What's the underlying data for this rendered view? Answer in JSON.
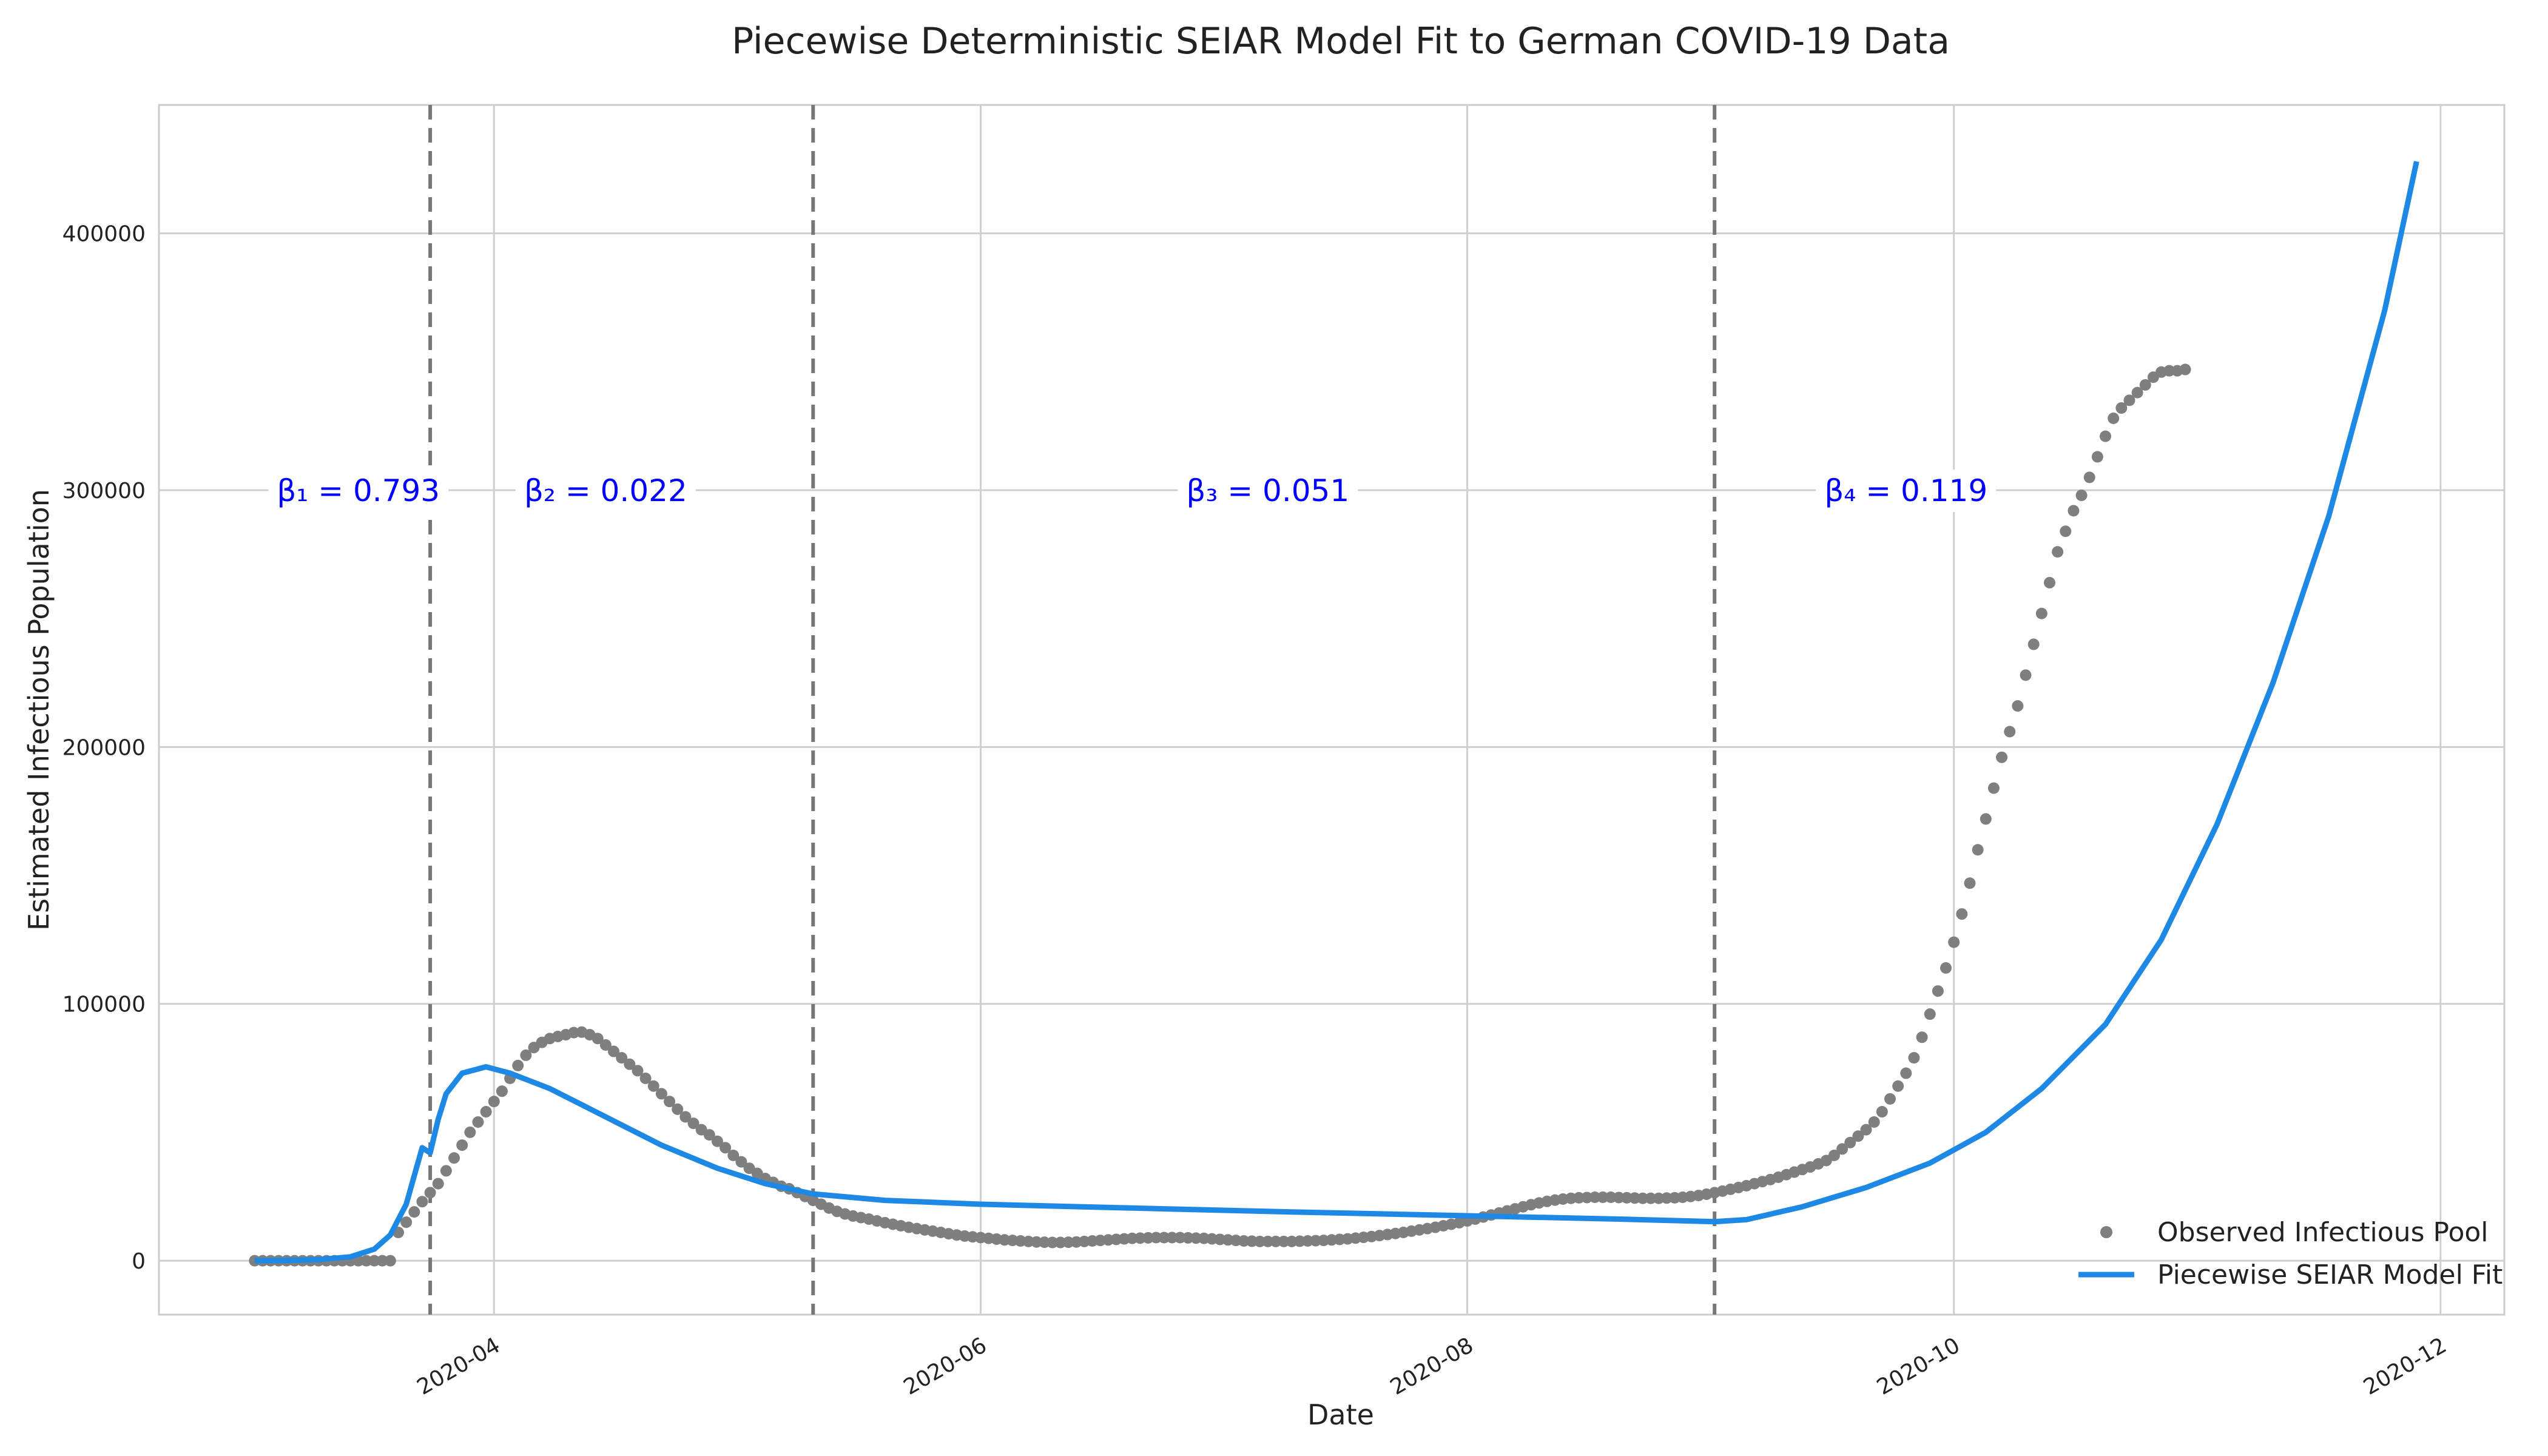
{
  "chart_data": {
    "type": "line",
    "title": "Piecewise Deterministic SEIAR Model Fit to German COVID-19 Data",
    "xlabel": "Date",
    "ylabel": "Estimated Infectious Population",
    "xlim": [
      "2020-02-19",
      "2020-12-09"
    ],
    "ylim": [
      -21000,
      450000
    ],
    "x_ticks": [
      "2020-04",
      "2020-06",
      "2020-08",
      "2020-10",
      "2020-12"
    ],
    "x_tick_dates": [
      "2020-04-01",
      "2020-06-01",
      "2020-08-01",
      "2020-10-01",
      "2020-12-01"
    ],
    "y_ticks": [
      0,
      100000,
      200000,
      300000,
      400000
    ],
    "grid": true,
    "legend_position": "bottom-right",
    "colors": {
      "observed": "#7f7f7f",
      "model": "#1e88e5",
      "changepoint": "#777777",
      "beta_text": "#0000ff"
    },
    "changepoints": [
      "2020-03-24",
      "2020-05-11",
      "2020-09-01"
    ],
    "annotations": [
      {
        "label": "β₁ = 0.793",
        "x": "2020-03-15",
        "y": 300000
      },
      {
        "label": "β₂ = 0.022",
        "x": "2020-04-15",
        "y": 300000
      },
      {
        "label": "β₃ = 0.051",
        "x": "2020-07-07",
        "y": 300000
      },
      {
        "label": "β₄ = 0.119",
        "x": "2020-09-25",
        "y": 300000
      }
    ],
    "observed": {
      "name": "Observed Infectious Pool",
      "start_date": "2020-03-02",
      "values": [
        0,
        0,
        0,
        0,
        0,
        0,
        0,
        0,
        0,
        0,
        0,
        0,
        0,
        0,
        0,
        0,
        0,
        0,
        11000,
        15000,
        19000,
        23000,
        26500,
        30000,
        35000,
        40000,
        45000,
        50000,
        54000,
        58000,
        62000,
        66000,
        71000,
        76000,
        80000,
        83000,
        85000,
        86500,
        87300,
        88000,
        88800,
        89000,
        88000,
        86500,
        84000,
        81500,
        79000,
        76500,
        74000,
        71000,
        68000,
        65000,
        62000,
        59000,
        56000,
        53500,
        51000,
        49000,
        46500,
        44000,
        41000,
        38500,
        36000,
        34000,
        32000,
        30500,
        29000,
        28000,
        26500,
        25000,
        23500,
        22000,
        20500,
        19200,
        18200,
        17400,
        16800,
        16200,
        15500,
        14800,
        14200,
        13600,
        13000,
        12500,
        12000,
        11500,
        11000,
        10500,
        10000,
        9600,
        9300,
        9000,
        8700,
        8400,
        8100,
        7900,
        7700,
        7500,
        7300,
        7200,
        7100,
        7100,
        7200,
        7300,
        7500,
        7700,
        7900,
        8100,
        8300,
        8500,
        8700,
        8800,
        8900,
        9000,
        9000,
        9000,
        9000,
        8900,
        8800,
        8700,
        8500,
        8300,
        8100,
        7900,
        7700,
        7600,
        7500,
        7500,
        7500,
        7500,
        7500,
        7600,
        7700,
        7800,
        7900,
        8100,
        8300,
        8500,
        8800,
        9100,
        9400,
        9800,
        10200,
        10600,
        11000,
        11500,
        12000,
        12500,
        13000,
        13600,
        14200,
        14800,
        15500,
        16200,
        17000,
        17800,
        18600,
        19400,
        20200,
        21000,
        21800,
        22500,
        23100,
        23600,
        24000,
        24300,
        24500,
        24600,
        24700,
        24700,
        24700,
        24600,
        24500,
        24400,
        24300,
        24300,
        24300,
        24400,
        24500,
        24700,
        25000,
        25400,
        25900,
        26500,
        27100,
        27800,
        28500,
        29200,
        30000,
        30800,
        31600,
        32500,
        33500,
        34500,
        35500,
        36500,
        37700,
        39000,
        41000,
        43500,
        46000,
        48500,
        51000,
        54000,
        58000,
        63000,
        68000,
        73000,
        79000,
        87000,
        96000,
        105000,
        114000,
        124000,
        135000,
        147000,
        160000,
        172000,
        184000,
        196000,
        206000,
        216000,
        228000,
        240000,
        252000,
        264000,
        276000,
        284000,
        292000,
        298000,
        305000,
        313000,
        321000,
        328000,
        332000,
        335000,
        338000,
        341000,
        344000,
        346000,
        346500,
        346500,
        347000
      ]
    },
    "model": {
      "name": "Piecewise SEIAR Model Fit",
      "x": [
        "2020-03-02",
        "2020-03-06",
        "2020-03-10",
        "2020-03-14",
        "2020-03-17",
        "2020-03-19",
        "2020-03-21",
        "2020-03-23",
        "2020-03-24",
        "2020-03-25",
        "2020-03-26",
        "2020-03-28",
        "2020-03-31",
        "2020-04-03",
        "2020-04-08",
        "2020-04-15",
        "2020-04-22",
        "2020-04-29",
        "2020-05-05",
        "2020-05-11",
        "2020-05-20",
        "2020-06-01",
        "2020-06-20",
        "2020-07-10",
        "2020-08-01",
        "2020-08-20",
        "2020-09-01",
        "2020-09-05",
        "2020-09-12",
        "2020-09-20",
        "2020-09-28",
        "2020-10-05",
        "2020-10-12",
        "2020-10-20",
        "2020-10-27",
        "2020-11-03",
        "2020-11-10",
        "2020-11-17",
        "2020-11-24",
        "2020-11-28"
      ],
      "y": [
        0,
        100,
        400,
        1500,
        4500,
        10000,
        22000,
        44000,
        42000,
        55000,
        65000,
        73000,
        75500,
        73000,
        67000,
        56000,
        45000,
        36000,
        30000,
        26000,
        23500,
        22000,
        20500,
        19000,
        17500,
        16200,
        15200,
        16000,
        21000,
        28500,
        38000,
        50000,
        67000,
        92000,
        125000,
        170000,
        225000,
        290000,
        370000,
        428000
      ]
    }
  }
}
